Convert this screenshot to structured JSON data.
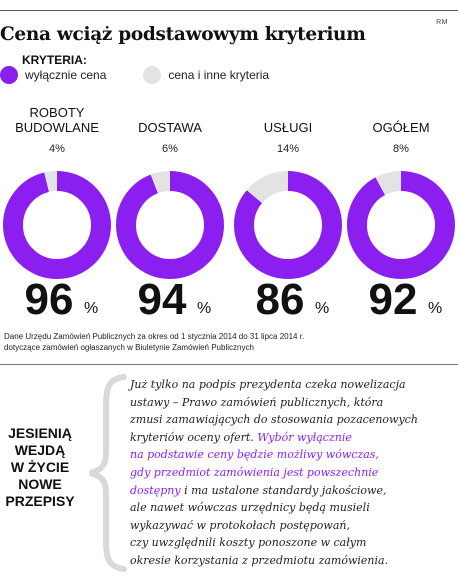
{
  "header": {
    "credit": "RM",
    "title": "Cena wciąż podstawowym kryterium"
  },
  "legend": {
    "title": "KRYTERIA:",
    "items": [
      "wyłącznie cena",
      "cena i inne kryteria"
    ]
  },
  "colors": {
    "primary": "#8a1ff0",
    "secondary": "#e3e3e3"
  },
  "chart_data": {
    "type": "pie",
    "title": "Cena wciąż podstawowym kryterium",
    "series": [
      {
        "name": "wyłącznie cena",
        "values": [
          96,
          94,
          86,
          92
        ]
      },
      {
        "name": "cena i inne kryteria",
        "values": [
          4,
          6,
          14,
          8
        ]
      }
    ],
    "categories": [
      {
        "label_lines": [
          "ROBOTY",
          "BUDOWLANE"
        ],
        "main": "96",
        "minor": "4%"
      },
      {
        "label_lines": [
          "DOSTAWA"
        ],
        "main": "94",
        "minor": "6%"
      },
      {
        "label_lines": [
          "USŁUGI"
        ],
        "main": "86",
        "minor": "14%"
      },
      {
        "label_lines": [
          "OGÓŁEM"
        ],
        "main": "92",
        "minor": "8%"
      }
    ],
    "percent_sign": "%"
  },
  "source": {
    "lines": [
      "Dane Urzędu Zamówień Publicznych za okres od 1 stycznia 2014 do 31 lipca 2014 r.",
      "dotyczące zamówień ogłaszanych w Biuletynie Zamówień Publicznych"
    ]
  },
  "side_label": {
    "lines": [
      "JESIENIĄ",
      "WEJDĄ",
      "W ŻYCIE",
      "NOWE",
      "PRZEPISY"
    ]
  },
  "paragraph": {
    "lines": [
      [
        {
          "t": "Już tylko na podpis prezydenta czeka nowelizacja"
        }
      ],
      [
        {
          "t": "ustawy – Prawo zamówień publicznych, która"
        }
      ],
      [
        {
          "t": "zmusi zamawiających do stosowania pozacenowych"
        }
      ],
      [
        {
          "t": "kryteriów oceny ofert. "
        },
        {
          "t": "Wybór wyłącznie",
          "hl": true
        }
      ],
      [
        {
          "t": "na podstawie ceny będzie możliwy wówczas,",
          "hl": true
        }
      ],
      [
        {
          "t": "gdy przedmiot zamówienia jest powszechnie",
          "hl": true
        }
      ],
      [
        {
          "t": "dostępny",
          "hl": true
        },
        {
          "t": " i ma ustalone standardy jakościowe,"
        }
      ],
      [
        {
          "t": "ale nawet wówczas urzędnicy będą musieli"
        }
      ],
      [
        {
          "t": "wykazywać w protokołach postępowań,"
        }
      ],
      [
        {
          "t": "czy uwzględnili koszty ponoszone w całym"
        }
      ],
      [
        {
          "t": "okresie korzystania z przedmiotu zamówienia."
        }
      ]
    ]
  }
}
